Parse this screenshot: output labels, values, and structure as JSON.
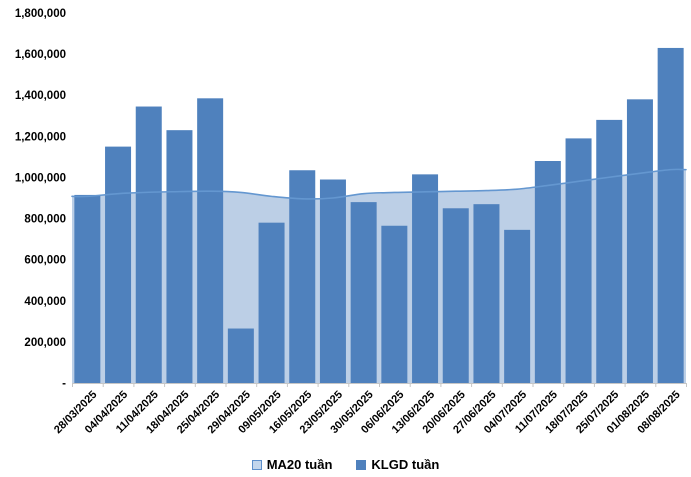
{
  "chart_data": {
    "type": "combo",
    "title": "",
    "categories": [
      "28/03/2025",
      "04/04/2025",
      "11/04/2025",
      "18/04/2025",
      "25/04/2025",
      "29/04/2025",
      "09/05/2025",
      "16/05/2025",
      "23/05/2025",
      "30/05/2025",
      "06/06/2025",
      "13/06/2025",
      "20/06/2025",
      "27/06/2025",
      "04/07/2025",
      "11/07/2025",
      "18/07/2025",
      "25/07/2025",
      "01/08/2025",
      "08/08/2025"
    ],
    "series": [
      {
        "name": "MA20 tuần",
        "type": "area",
        "values": [
          908000,
          921000,
          928000,
          931000,
          933000,
          927000,
          908000,
          896000,
          900000,
          921000,
          927000,
          930000,
          933000,
          936000,
          943000,
          961000,
          981000,
          1001000,
          1020000,
          1038000
        ]
      },
      {
        "name": "KLGD tuần",
        "type": "bar",
        "values": [
          915000,
          1150000,
          1345000,
          1230000,
          1385000,
          265000,
          780000,
          1035000,
          990000,
          880000,
          765000,
          1015000,
          850000,
          870000,
          745000,
          1080000,
          1190000,
          1280000,
          1380000,
          1630000
        ]
      }
    ],
    "ylim": [
      0,
      1800000
    ],
    "ytick_step": 200000,
    "y_tick_labels": [
      "-",
      "200,000",
      "400,000",
      "600,000",
      "800,000",
      "1,000,000",
      "1,200,000",
      "1,400,000",
      "1,600,000",
      "1,800,000"
    ],
    "grid": false,
    "legend_position": "bottom",
    "x_label_rotation": -45
  },
  "colors": {
    "bar": "#4F81BD",
    "area_fill": "#BCCFE6",
    "area_line": "#6497D0",
    "axis": "#C6C6C6",
    "text": "#000000",
    "background": "#FFFFFF"
  }
}
